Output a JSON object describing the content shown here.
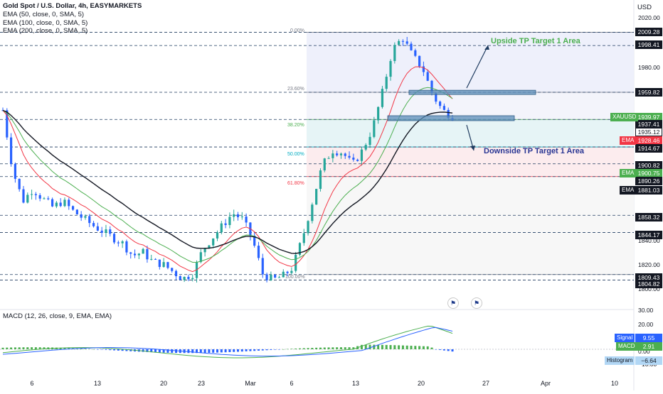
{
  "header": {
    "title": "Gold Spot / U.S. Dollar, 4h, EASYMARKETS",
    "ema50": "EMA (50, close, 0, SMA, 5)",
    "ema100": "EMA (100, close, 0, SMA, 5)",
    "ema200": "EMA (200, close, 0, SMA, 5)",
    "currency": "USD"
  },
  "price_axis": {
    "ticks": [
      "2020.00",
      "1980.00",
      "1840.00",
      "1820.00",
      "1800.00"
    ]
  },
  "time_axis": {
    "labels": [
      "6",
      "13",
      "20",
      "23",
      "Mar",
      "6",
      "13",
      "20",
      "27",
      "Apr",
      "10"
    ]
  },
  "price_tags": [
    {
      "value": "2009.28",
      "style": "dark"
    },
    {
      "value": "1998.41",
      "style": "dark"
    },
    {
      "value": "1959.82",
      "style": "dark"
    },
    {
      "value": "1939.97",
      "style": "green"
    },
    {
      "value": "1937.41",
      "style": "dark"
    },
    {
      "value": "1935.12",
      "style": "outline"
    },
    {
      "value": "1928.46",
      "style": "red"
    },
    {
      "value": "1914.67",
      "style": "dark"
    },
    {
      "value": "1900.82",
      "style": "dark"
    },
    {
      "value": "1900.75",
      "style": "green"
    },
    {
      "value": "1890.26",
      "style": "dark"
    },
    {
      "value": "1881.03",
      "style": "dark"
    },
    {
      "value": "1858.32",
      "style": "dark"
    },
    {
      "value": "1844.17",
      "style": "dark"
    },
    {
      "value": "1809.43",
      "style": "dark"
    },
    {
      "value": "1804.82",
      "style": "dark"
    }
  ],
  "side_tags": {
    "symbol": "XAUUSD",
    "ema1": "EMA",
    "ema2": "EMA",
    "ema3": "EMA"
  },
  "fib_levels": [
    {
      "label": "0.00%"
    },
    {
      "label": "23.60%"
    },
    {
      "label": "38.20%"
    },
    {
      "label": "50.00%"
    },
    {
      "label": "61.80%"
    },
    {
      "label": "100.00%"
    }
  ],
  "annotations": {
    "upside": "Upside TP Target 1 Area",
    "downside": "Downside TP Target 1 Area"
  },
  "macd": {
    "legend": "MACD (12, 26, close, 9, EMA, EMA)",
    "axis_ticks": [
      "30.00",
      "20.00",
      "0.00",
      "−10.00"
    ],
    "signal_label": "Signal",
    "signal_value": "9.55",
    "macd_label": "MACD",
    "macd_value": "2.91",
    "hist_label": "Histogram",
    "hist_value": "−6.64"
  },
  "colors": {
    "up_candle": "#26a69a",
    "down_candle": "#2962ff",
    "ema50": "#f23645",
    "ema100": "#4caf50",
    "ema200": "#131722",
    "zone": "#5b8db8"
  },
  "chart_data": {
    "type": "candlestick",
    "symbol": "XAUUSD",
    "timeframe": "4h",
    "ylim": [
      1800,
      2025
    ],
    "series": [
      {
        "name": "Gold Spot / U.S. Dollar",
        "close_path": [
          1945,
          1895,
          1870,
          1880,
          1872,
          1865,
          1870,
          1862,
          1856,
          1850,
          1845,
          1840,
          1835,
          1825,
          1828,
          1820,
          1818,
          1812,
          1806,
          1810,
          1830,
          1840,
          1850,
          1860,
          1855,
          1838,
          1810,
          1805,
          1808,
          1815,
          1840,
          1870,
          1900,
          1912,
          1910,
          1900,
          1912,
          1930,
          1960,
          1995,
          2005,
          1990,
          1980,
          1958,
          1945,
          1940
        ]
      },
      {
        "name": "EMA",
        "last": 1928.46
      },
      {
        "name": "EMA",
        "last": 1900.75
      },
      {
        "name": "EMA",
        "last": 1881.03
      }
    ],
    "macd": {
      "signal": 9.55,
      "macd": 2.91,
      "histogram": -6.64
    }
  }
}
